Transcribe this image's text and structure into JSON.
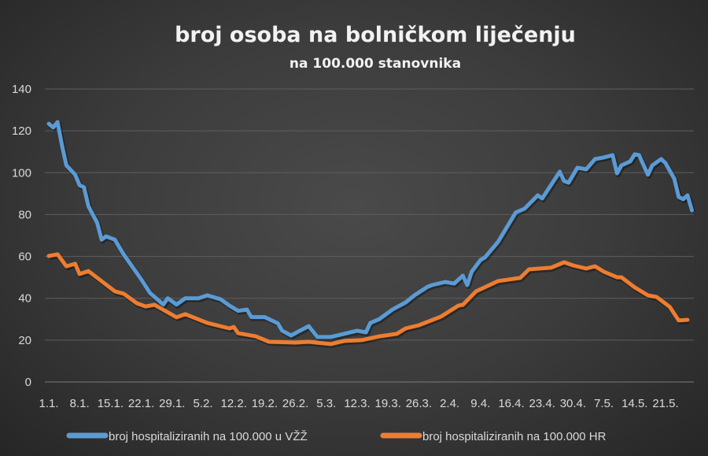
{
  "chart_data": {
    "type": "line",
    "title": "broj osoba na bolničkom liječenju",
    "subtitle": "na 100.000 stanovnika",
    "xlabel": "",
    "ylabel": "",
    "ylim": [
      0,
      140
    ],
    "yticks": [
      0,
      20,
      40,
      60,
      80,
      100,
      120,
      140
    ],
    "grid": true,
    "legend_position": "bottom",
    "x_tick_labels": [
      "1.1.",
      "8.1.",
      "15.1.",
      "22.1.",
      "29.1.",
      "5.2.",
      "12.2.",
      "19.2.",
      "26.2.",
      "5.3.",
      "12.3.",
      "19.3.",
      "26.3.",
      "2.4.",
      "9.4.",
      "16.4.",
      "23.4.",
      "30.4.",
      "7.5.",
      "14.5.",
      "21.5."
    ],
    "x_unit": "days since 1.1.",
    "x_range": [
      0,
      146
    ],
    "series": [
      {
        "name": "broj hospitaliziranih na 100.000 u VŽŽ",
        "color": "#5b9bd5",
        "x": [
          0,
          1,
          2,
          3,
          4,
          6,
          7,
          8,
          9,
          11,
          12,
          13,
          15,
          17,
          19,
          21,
          23,
          26,
          27,
          29,
          31,
          34,
          36,
          39,
          41,
          43,
          45,
          46,
          49,
          52,
          53,
          55,
          57,
          59,
          61,
          64,
          67,
          70,
          72,
          73,
          75,
          78,
          81,
          83,
          86,
          87,
          90,
          92,
          94,
          95,
          96,
          98,
          99,
          102,
          106,
          108,
          111,
          112,
          116,
          117,
          118,
          120,
          122,
          124,
          126,
          128,
          129,
          130,
          132,
          133,
          134,
          136,
          137,
          139,
          140,
          142,
          143,
          144,
          145,
          146
        ],
        "y": [
          123.4,
          121.6,
          124.2,
          113,
          103.5,
          99,
          94,
          93,
          84,
          76,
          68,
          69.6,
          68,
          61,
          55,
          49,
          42.5,
          37,
          40,
          37,
          40,
          40,
          41.4,
          39.5,
          36.5,
          34,
          34.6,
          31,
          31,
          28,
          24.5,
          22.2,
          24.5,
          26.7,
          21.5,
          21.5,
          23,
          24.5,
          23.7,
          28.2,
          30,
          34.6,
          38,
          41.4,
          45.5,
          46.3,
          47.8,
          47,
          50.8,
          46.3,
          52.7,
          58.3,
          59.5,
          67,
          81,
          82.8,
          89.2,
          87.7,
          100.5,
          96,
          95.2,
          102.4,
          101.6,
          106.5,
          107.3,
          108.4,
          99.7,
          103.5,
          105.4,
          108.8,
          108.4,
          99,
          103.5,
          106.5,
          104.6,
          97.1,
          88.4,
          87.3,
          89.2,
          82
        ]
      },
      {
        "name": "broj hospitaliziranih na 100.000 HR",
        "color": "#ed7d31",
        "x": [
          0,
          2,
          4,
          6,
          7,
          9,
          15,
          17,
          20,
          22,
          24,
          29,
          31,
          36,
          41,
          42,
          43,
          47,
          50,
          56,
          59,
          64,
          67,
          71,
          75,
          79,
          81,
          84,
          89,
          93,
          94,
          97,
          102,
          107,
          109,
          114,
          117,
          119,
          122,
          124,
          126,
          129,
          130,
          133,
          136,
          138,
          141,
          143,
          145
        ],
        "y": [
          60.2,
          61,
          55.3,
          56.5,
          51.6,
          53,
          43.3,
          42.2,
          37.6,
          36.1,
          36.9,
          30.9,
          32.4,
          28.2,
          25.6,
          26.3,
          23.3,
          21.8,
          19.2,
          18.8,
          19.2,
          18.1,
          19.6,
          20,
          21.8,
          23,
          25.6,
          27.1,
          31.2,
          36.5,
          36.9,
          43.3,
          48.2,
          49.7,
          53.8,
          54.6,
          57.2,
          55.7,
          54.2,
          55.3,
          52.7,
          50,
          50,
          45.2,
          41.4,
          40.6,
          35.8,
          29.4,
          29.7
        ]
      }
    ]
  }
}
